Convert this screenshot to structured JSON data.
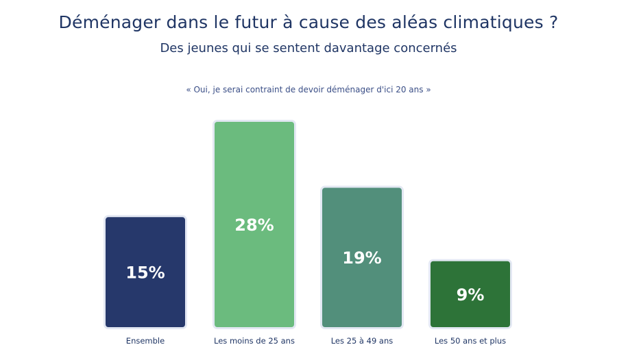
{
  "title": "Déménager dans le futur à cause des aléas climatiques ?",
  "subtitle": "Des jeunes qui se sentent davantage concernés",
  "quote": "« Oui, je serai contraint de devoir déménager d'ici 20 ans »",
  "chart_data": {
    "type": "bar",
    "title": "Déménager dans le futur à cause des aléas climatiques ?",
    "subtitle": "Des jeunes qui se sentent davantage concernés",
    "question": "« Oui, je serai contraint de devoir déménager d'ici 20 ans »",
    "categories": [
      "Ensemble",
      "Les moins de 25 ans",
      "Les 25 à 49 ans",
      "Les 50 ans et plus"
    ],
    "values": [
      15,
      28,
      19,
      9
    ],
    "labels": [
      "15%",
      "28%",
      "19%",
      "9%"
    ],
    "colors": [
      "#26386b",
      "#6bbb7e",
      "#528f7b",
      "#2d7338"
    ],
    "ylim": [
      0,
      28
    ],
    "xlabel": "",
    "ylabel": "",
    "grid": false
  }
}
